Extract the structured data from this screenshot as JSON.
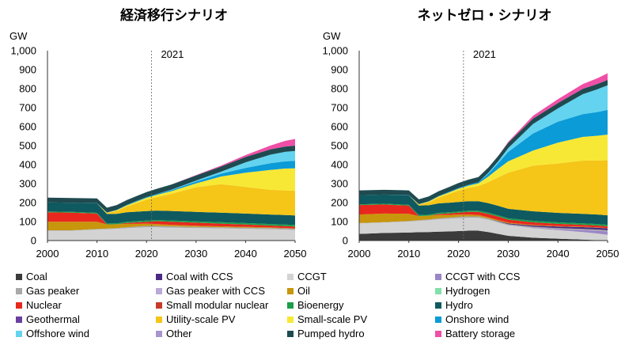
{
  "chart_data": [
    {
      "type": "area",
      "title": "経済移行シナリオ",
      "ylabel": "GW",
      "annotation": "2021",
      "annotation_x": 2021,
      "ylim": [
        0,
        1000
      ],
      "yticks": [
        "0",
        "100",
        "200",
        "300",
        "400",
        "500",
        "600",
        "700",
        "800",
        "900",
        "1,000"
      ],
      "xticks": [
        2000,
        2010,
        2020,
        2030,
        2040,
        2050
      ],
      "x": [
        2000,
        2005,
        2010,
        2012,
        2014,
        2016,
        2018,
        2020,
        2022,
        2025,
        2030,
        2035,
        2040,
        2045,
        2048,
        2050
      ],
      "series": [
        {
          "name": "Coal",
          "color": "#3b3b3b",
          "values": [
            0,
            0,
            0,
            0,
            0,
            0,
            0,
            0,
            0,
            0,
            0,
            0,
            0,
            0,
            0,
            0
          ]
        },
        {
          "name": "CCGT",
          "color": "#d3d3d3",
          "values": [
            52,
            52,
            58,
            60,
            62,
            65,
            68,
            70,
            70,
            68,
            66,
            64,
            62,
            60,
            58,
            56
          ]
        },
        {
          "name": "Gas peaker",
          "color": "#a9a9a9",
          "values": [
            2,
            2,
            3,
            3,
            4,
            5,
            6,
            7,
            7,
            7,
            6,
            6,
            6,
            6,
            6,
            6
          ]
        },
        {
          "name": "Oil",
          "color": "#c8960c",
          "values": [
            45,
            45,
            38,
            22,
            20,
            18,
            14,
            12,
            10,
            8,
            6,
            5,
            4,
            3,
            2,
            2
          ]
        },
        {
          "name": "Nuclear",
          "color": "#e8281e",
          "values": [
            50,
            48,
            43,
            0,
            0,
            5,
            8,
            10,
            15,
            16,
            16,
            14,
            12,
            10,
            10,
            10
          ]
        },
        {
          "name": "Bioenergy",
          "color": "#1a9e48",
          "values": [
            4,
            4,
            4,
            5,
            5,
            6,
            6,
            6,
            6,
            7,
            7,
            8,
            8,
            8,
            8,
            8
          ]
        },
        {
          "name": "Hydro",
          "color": "#0e5a60",
          "values": [
            48,
            48,
            50,
            50,
            50,
            50,
            50,
            50,
            50,
            50,
            50,
            50,
            50,
            50,
            50,
            50
          ]
        },
        {
          "name": "Utility-scale PV",
          "color": "#f5c518",
          "values": [
            0,
            0,
            0,
            5,
            15,
            30,
            45,
            60,
            70,
            90,
            130,
            150,
            140,
            130,
            130,
            130
          ]
        },
        {
          "name": "Small-scale PV",
          "color": "#f7e835",
          "values": [
            0,
            0,
            0,
            2,
            4,
            6,
            8,
            10,
            12,
            14,
            20,
            40,
            75,
            105,
            115,
            118
          ]
        },
        {
          "name": "Onshore wind",
          "color": "#0b9bd7",
          "values": [
            0,
            0,
            1,
            1,
            2,
            3,
            4,
            4,
            5,
            6,
            10,
            15,
            25,
            35,
            38,
            40
          ]
        },
        {
          "name": "Offshore wind",
          "color": "#63d3ef",
          "values": [
            0,
            0,
            0,
            0,
            0,
            0,
            0,
            0,
            0,
            2,
            5,
            10,
            30,
            45,
            50,
            52
          ]
        },
        {
          "name": "Pumped hydro",
          "color": "#1f4a50",
          "values": [
            25,
            25,
            25,
            25,
            25,
            25,
            25,
            26,
            27,
            27,
            27,
            27,
            28,
            28,
            28,
            28
          ]
        },
        {
          "name": "Battery storage",
          "color": "#ef4fa6",
          "values": [
            0,
            0,
            0,
            0,
            0,
            0,
            0,
            0,
            0,
            0,
            2,
            5,
            10,
            20,
            30,
            35
          ]
        }
      ]
    },
    {
      "type": "area",
      "title": "ネットゼロ・シナリオ",
      "ylabel": "GW",
      "annotation": "2021",
      "annotation_x": 2021,
      "ylim": [
        0,
        1000
      ],
      "yticks": [
        "0",
        "100",
        "200",
        "300",
        "400",
        "500",
        "600",
        "700",
        "800",
        "900",
        "1,000"
      ],
      "xticks": [
        2000,
        2010,
        2020,
        2030,
        2040,
        2050
      ],
      "x": [
        2000,
        2005,
        2010,
        2012,
        2014,
        2016,
        2018,
        2020,
        2022,
        2024,
        2026,
        2028,
        2030,
        2035,
        2040,
        2045,
        2048,
        2050
      ],
      "series": [
        {
          "name": "Coal",
          "color": "#3b3b3b",
          "values": [
            35,
            40,
            42,
            44,
            45,
            47,
            48,
            50,
            52,
            52,
            45,
            35,
            25,
            15,
            10,
            5,
            2,
            0
          ]
        },
        {
          "name": "CCGT",
          "color": "#d3d3d3",
          "values": [
            55,
            55,
            58,
            60,
            62,
            65,
            67,
            68,
            68,
            68,
            65,
            60,
            55,
            50,
            45,
            40,
            35,
            30
          ]
        },
        {
          "name": "CCGT with CCS",
          "color": "#9b86c6",
          "values": [
            0,
            0,
            0,
            0,
            0,
            0,
            0,
            0,
            0,
            0,
            0,
            0,
            0,
            2,
            5,
            10,
            15,
            18
          ]
        },
        {
          "name": "Gas peaker",
          "color": "#a9a9a9",
          "values": [
            2,
            2,
            3,
            3,
            4,
            5,
            6,
            7,
            7,
            7,
            6,
            6,
            6,
            6,
            6,
            6,
            6,
            6
          ]
        },
        {
          "name": "Coal with CCS",
          "color": "#4b2a82",
          "values": [
            0,
            0,
            0,
            0,
            0,
            0,
            0,
            0,
            0,
            0,
            0,
            2,
            4,
            6,
            8,
            10,
            10,
            10
          ]
        },
        {
          "name": "Oil",
          "color": "#c8960c",
          "values": [
            45,
            45,
            38,
            22,
            20,
            18,
            14,
            12,
            10,
            8,
            6,
            5,
            4,
            3,
            2,
            2,
            1,
            1
          ]
        },
        {
          "name": "Nuclear",
          "color": "#e8281e",
          "values": [
            50,
            48,
            43,
            0,
            0,
            5,
            8,
            10,
            14,
            16,
            18,
            18,
            16,
            14,
            12,
            10,
            10,
            10
          ]
        },
        {
          "name": "Bioenergy",
          "color": "#1a9e48",
          "values": [
            4,
            4,
            4,
            5,
            5,
            6,
            6,
            6,
            6,
            6,
            7,
            7,
            7,
            8,
            8,
            8,
            8,
            8
          ]
        },
        {
          "name": "Hydro",
          "color": "#0e5a60",
          "values": [
            48,
            48,
            50,
            50,
            50,
            50,
            50,
            50,
            50,
            50,
            50,
            50,
            50,
            50,
            50,
            50,
            50,
            50
          ]
        },
        {
          "name": "Utility-scale PV",
          "color": "#f5c518",
          "values": [
            0,
            0,
            0,
            5,
            15,
            30,
            45,
            60,
            70,
            80,
            110,
            150,
            190,
            240,
            260,
            280,
            285,
            290
          ]
        },
        {
          "name": "Small-scale PV",
          "color": "#f7e835",
          "values": [
            0,
            0,
            0,
            2,
            4,
            6,
            8,
            10,
            12,
            14,
            30,
            45,
            60,
            80,
            110,
            125,
            130,
            135
          ]
        },
        {
          "name": "Onshore wind",
          "color": "#0b9bd7",
          "values": [
            0,
            0,
            1,
            1,
            2,
            3,
            4,
            4,
            5,
            6,
            15,
            30,
            50,
            90,
            110,
            120,
            125,
            130
          ]
        },
        {
          "name": "Offshore wind",
          "color": "#63d3ef",
          "values": [
            0,
            0,
            0,
            0,
            0,
            0,
            0,
            0,
            0,
            0,
            5,
            10,
            20,
            50,
            70,
            105,
            120,
            130
          ]
        },
        {
          "name": "Pumped hydro",
          "color": "#1f4a50",
          "values": [
            25,
            25,
            25,
            25,
            25,
            25,
            25,
            26,
            27,
            27,
            27,
            28,
            28,
            28,
            28,
            28,
            28,
            28
          ]
        },
        {
          "name": "Battery storage",
          "color": "#ef4fa6",
          "values": [
            0,
            0,
            0,
            0,
            0,
            0,
            0,
            0,
            0,
            0,
            0,
            0,
            5,
            15,
            20,
            25,
            30,
            35
          ]
        }
      ]
    }
  ],
  "legend": [
    {
      "name": "Coal",
      "color": "#3b3b3b"
    },
    {
      "name": "Coal with CCS",
      "color": "#4b2a82"
    },
    {
      "name": "CCGT",
      "color": "#d3d3d3"
    },
    {
      "name": "CCGT with CCS",
      "color": "#9b86c6"
    },
    {
      "name": "Gas peaker",
      "color": "#a9a9a9"
    },
    {
      "name": "Gas peaker with CCS",
      "color": "#b9a9d9"
    },
    {
      "name": "Oil",
      "color": "#c8960c"
    },
    {
      "name": "Hydrogen",
      "color": "#82e0aa"
    },
    {
      "name": "Nuclear",
      "color": "#e8281e"
    },
    {
      "name": "Small modular nuclear",
      "color": "#c83a2a"
    },
    {
      "name": "Bioenergy",
      "color": "#1a9e48"
    },
    {
      "name": "Hydro",
      "color": "#0e5a60"
    },
    {
      "name": "Geothermal",
      "color": "#6a3fa0"
    },
    {
      "name": "Utility-scale PV",
      "color": "#f5c518"
    },
    {
      "name": "Small-scale PV",
      "color": "#f7e835"
    },
    {
      "name": "Onshore wind",
      "color": "#0b9bd7"
    },
    {
      "name": "Offshore wind",
      "color": "#63d3ef"
    },
    {
      "name": "Other",
      "color": "#a894cf"
    },
    {
      "name": "Pumped hydro",
      "color": "#1f4a50"
    },
    {
      "name": "Battery storage",
      "color": "#ef4fa6"
    }
  ]
}
